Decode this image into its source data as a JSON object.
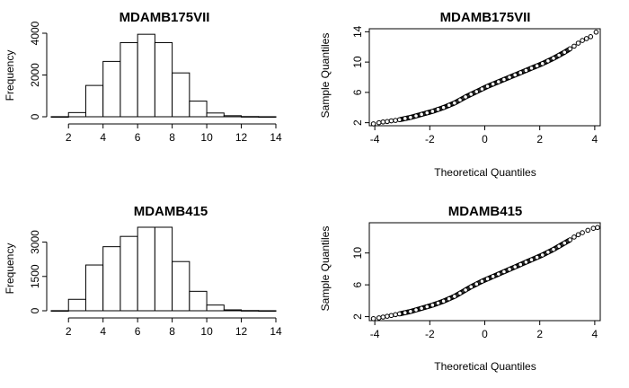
{
  "chart_data": [
    {
      "type": "bar",
      "title": "MDAMB175VII",
      "xlabel": "",
      "ylabel": "Frequency",
      "bins": [
        [
          1,
          2
        ],
        [
          2,
          3
        ],
        [
          3,
          4
        ],
        [
          4,
          5
        ],
        [
          5,
          6
        ],
        [
          6,
          7
        ],
        [
          7,
          8
        ],
        [
          8,
          9
        ],
        [
          9,
          10
        ],
        [
          10,
          11
        ],
        [
          11,
          12
        ],
        [
          12,
          13
        ],
        [
          13,
          14
        ]
      ],
      "values": [
        5,
        200,
        1500,
        2650,
        3550,
        3950,
        3550,
        2100,
        750,
        180,
        50,
        10,
        3
      ],
      "xticks": [
        2,
        4,
        6,
        8,
        10,
        12,
        14
      ],
      "yticks": [
        0,
        2000,
        4000
      ],
      "xlim": [
        1,
        14
      ],
      "ylim": [
        0,
        4000
      ]
    },
    {
      "type": "scatter",
      "title": "MDAMB175VII",
      "xlabel": "Theoretical Quantiles",
      "ylabel": "Sample Quantiles",
      "xticks": [
        -4,
        -2,
        0,
        2,
        4
      ],
      "yticks": [
        2,
        6,
        10,
        14
      ],
      "xlim": [
        -4.2,
        4.2
      ],
      "ylim": [
        1.6,
        14.4
      ],
      "points": [
        [
          -4.05,
          1.85
        ],
        [
          -3.85,
          2.0
        ],
        [
          -3.7,
          2.1
        ],
        [
          -3.55,
          2.15
        ],
        [
          -3.4,
          2.25
        ],
        [
          -3.25,
          2.3
        ],
        [
          -3.1,
          2.4
        ],
        [
          -2.9,
          2.55
        ],
        [
          -2.7,
          2.7
        ],
        [
          -2.5,
          2.9
        ],
        [
          -2.3,
          3.1
        ],
        [
          -2.1,
          3.3
        ],
        [
          -1.9,
          3.5
        ],
        [
          -1.7,
          3.75
        ],
        [
          -1.5,
          4.0
        ],
        [
          -1.3,
          4.3
        ],
        [
          -1.1,
          4.6
        ],
        [
          -0.9,
          5.0
        ],
        [
          -0.7,
          5.4
        ],
        [
          -0.5,
          5.75
        ],
        [
          -0.3,
          6.1
        ],
        [
          -0.1,
          6.45
        ],
        [
          0.1,
          6.8
        ],
        [
          0.3,
          7.1
        ],
        [
          0.5,
          7.4
        ],
        [
          0.7,
          7.7
        ],
        [
          0.9,
          8.0
        ],
        [
          1.1,
          8.3
        ],
        [
          1.3,
          8.6
        ],
        [
          1.5,
          8.9
        ],
        [
          1.7,
          9.2
        ],
        [
          1.9,
          9.5
        ],
        [
          2.1,
          9.8
        ],
        [
          2.3,
          10.15
        ],
        [
          2.5,
          10.5
        ],
        [
          2.7,
          10.9
        ],
        [
          2.9,
          11.3
        ],
        [
          3.1,
          11.75
        ],
        [
          3.25,
          12.1
        ],
        [
          3.4,
          12.5
        ],
        [
          3.55,
          12.85
        ],
        [
          3.7,
          13.1
        ],
        [
          3.85,
          13.35
        ],
        [
          4.05,
          13.95
        ]
      ]
    },
    {
      "type": "bar",
      "title": "MDAMB415",
      "xlabel": "",
      "ylabel": "Frequency",
      "bins": [
        [
          1,
          2
        ],
        [
          2,
          3
        ],
        [
          3,
          4
        ],
        [
          4,
          5
        ],
        [
          5,
          6
        ],
        [
          6,
          7
        ],
        [
          7,
          8
        ],
        [
          8,
          9
        ],
        [
          9,
          10
        ],
        [
          10,
          11
        ],
        [
          11,
          12
        ],
        [
          12,
          13
        ],
        [
          13,
          14
        ]
      ],
      "values": [
        5,
        500,
        2000,
        2800,
        3250,
        3650,
        3650,
        2150,
        850,
        250,
        40,
        10,
        3
      ],
      "xticks": [
        2,
        4,
        6,
        8,
        10,
        12,
        14
      ],
      "yticks": [
        0,
        1500,
        3000
      ],
      "xlim": [
        1,
        14
      ],
      "ylim": [
        0,
        3650
      ]
    },
    {
      "type": "scatter",
      "title": "MDAMB415",
      "xlabel": "Theoretical Quantiles",
      "ylabel": "Sample Quantiles",
      "xticks": [
        -4,
        -2,
        0,
        2,
        4
      ],
      "yticks": [
        2,
        6,
        10
      ],
      "xlim": [
        -4.2,
        4.2
      ],
      "ylim": [
        1.5,
        13.8
      ],
      "points": [
        [
          -4.05,
          1.75
        ],
        [
          -3.85,
          1.85
        ],
        [
          -3.7,
          1.95
        ],
        [
          -3.55,
          2.05
        ],
        [
          -3.4,
          2.15
        ],
        [
          -3.25,
          2.25
        ],
        [
          -3.1,
          2.35
        ],
        [
          -2.9,
          2.5
        ],
        [
          -2.7,
          2.65
        ],
        [
          -2.5,
          2.85
        ],
        [
          -2.3,
          3.05
        ],
        [
          -2.1,
          3.25
        ],
        [
          -1.9,
          3.45
        ],
        [
          -1.7,
          3.7
        ],
        [
          -1.5,
          3.95
        ],
        [
          -1.3,
          4.25
        ],
        [
          -1.1,
          4.55
        ],
        [
          -0.9,
          4.95
        ],
        [
          -0.7,
          5.35
        ],
        [
          -0.5,
          5.75
        ],
        [
          -0.3,
          6.1
        ],
        [
          -0.1,
          6.45
        ],
        [
          0.1,
          6.75
        ],
        [
          0.3,
          7.05
        ],
        [
          0.5,
          7.35
        ],
        [
          0.7,
          7.65
        ],
        [
          0.9,
          7.95
        ],
        [
          1.1,
          8.25
        ],
        [
          1.3,
          8.55
        ],
        [
          1.5,
          8.85
        ],
        [
          1.7,
          9.15
        ],
        [
          1.9,
          9.45
        ],
        [
          2.1,
          9.75
        ],
        [
          2.3,
          10.1
        ],
        [
          2.5,
          10.45
        ],
        [
          2.7,
          10.85
        ],
        [
          2.9,
          11.25
        ],
        [
          3.1,
          11.65
        ],
        [
          3.25,
          12.0
        ],
        [
          3.4,
          12.3
        ],
        [
          3.55,
          12.55
        ],
        [
          3.75,
          12.85
        ],
        [
          3.95,
          13.1
        ],
        [
          4.1,
          13.2
        ]
      ]
    }
  ]
}
